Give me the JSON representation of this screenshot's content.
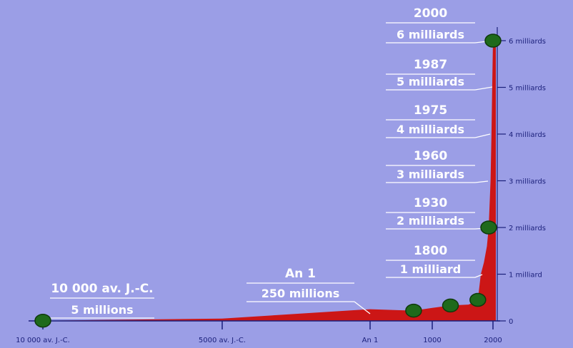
{
  "chart_data": {
    "type": "area",
    "title": "",
    "xlabel": "",
    "ylabel": "",
    "x_ticks": [
      {
        "x": -10000,
        "label": "10 000 av. J.-C."
      },
      {
        "x": -5000,
        "label": "5000 av. J.-C."
      },
      {
        "x": 1,
        "label": "An 1"
      },
      {
        "x": 1000,
        "label": "1000"
      },
      {
        "x": 2000,
        "label": "2000"
      }
    ],
    "y_ticks": [
      {
        "y": 0,
        "label": "0"
      },
      {
        "y": 1,
        "label": "1 milliard"
      },
      {
        "y": 2,
        "label": "2 milliards"
      },
      {
        "y": 3,
        "label": "3 milliards"
      },
      {
        "y": 4,
        "label": "4 milliards"
      },
      {
        "y": 5,
        "label": "5 milliards"
      },
      {
        "y": 6,
        "label": "6 milliards"
      }
    ],
    "series": [
      {
        "x": [
          -10000,
          -5000,
          1,
          700,
          1000,
          1300,
          1600,
          1750,
          1800,
          1850,
          1900,
          1930,
          1960,
          1975,
          1987,
          2000
        ],
        "y": [
          0.005,
          0.05,
          0.25,
          0.22,
          0.28,
          0.33,
          0.35,
          0.45,
          1.0,
          1.25,
          1.6,
          2.0,
          3.0,
          4.0,
          5.0,
          6.0
        ]
      }
    ],
    "markers": [
      {
        "x": -10000,
        "y": 0.005
      },
      {
        "x": 700,
        "y": 0.22
      },
      {
        "x": 1300,
        "y": 0.33
      },
      {
        "x": 1750,
        "y": 0.45
      },
      {
        "x": 1930,
        "y": 2.0
      },
      {
        "x": 2000,
        "y": 6.0
      }
    ],
    "annotations": [
      {
        "line1": "2000",
        "line2": "6 milliards",
        "x": 2000,
        "y": 6.0
      },
      {
        "line1": "1987",
        "line2": "5 milliards",
        "x": 1987,
        "y": 5.0
      },
      {
        "line1": "1975",
        "line2": "4 milliards",
        "x": 1975,
        "y": 4.0
      },
      {
        "line1": "1960",
        "line2": "3 milliards",
        "x": 1960,
        "y": 3.0
      },
      {
        "line1": "1930",
        "line2": "2 milliards",
        "x": 1930,
        "y": 2.0
      },
      {
        "line1": "1800",
        "line2": "1 milliard",
        "x": 1800,
        "y": 1.0
      },
      {
        "line1": "An 1",
        "line2": "250 millions",
        "x": 1,
        "y": 0.25
      },
      {
        "line1": "10 000 av. J.-C.",
        "line2": "5 millions",
        "x": -10000,
        "y": 0.005
      }
    ],
    "colors": {
      "background": "#9b9ee6",
      "area": "#cc1616",
      "marker": "#1f6a1b",
      "text": "#ffffff",
      "axis": "#1a1f7a"
    },
    "xlim": [
      -10000,
      2000
    ],
    "ylim": [
      0,
      6
    ],
    "grid": false,
    "legend": "none"
  }
}
